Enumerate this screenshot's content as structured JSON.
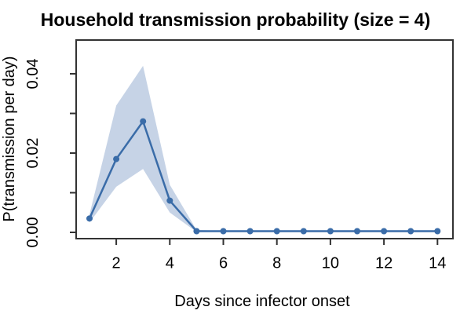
{
  "chart_data": {
    "type": "line",
    "title": "Household transmission probability (size = 4)",
    "xlabel": "Days since infector onset",
    "ylabel": "P(transmission per day)",
    "x": [
      1,
      2,
      3,
      4,
      5,
      6,
      7,
      8,
      9,
      10,
      11,
      12,
      13,
      14
    ],
    "series": [
      {
        "name": "mean",
        "values": [
          0.0035,
          0.0185,
          0.028,
          0.008,
          0.0003,
          0.0003,
          0.0003,
          0.0003,
          0.0003,
          0.0003,
          0.0003,
          0.0003,
          0.0003,
          0.0003
        ]
      },
      {
        "name": "ci_lower",
        "values": [
          0.0025,
          0.0115,
          0.016,
          0.005,
          0.0001,
          0.0002,
          0.0002,
          0.0002,
          0.0002,
          0.0002,
          0.0002,
          0.0002,
          0.0002,
          0.0002
        ]
      },
      {
        "name": "ci_upper",
        "values": [
          0.0045,
          0.032,
          0.042,
          0.012,
          0.0006,
          0.0004,
          0.0004,
          0.0004,
          0.0004,
          0.0004,
          0.0004,
          0.0004,
          0.0004,
          0.0004
        ]
      }
    ],
    "x_ticks": {
      "values": [
        2,
        4,
        6,
        8,
        10,
        12,
        14
      ],
      "labels": [
        "2",
        "4",
        "6",
        "8",
        "10",
        "12",
        "14"
      ]
    },
    "y_ticks": {
      "values": [
        0,
        0.01,
        0.02,
        0.03,
        0.04
      ],
      "labeled_values": [
        0,
        0.02,
        0.04
      ],
      "labels": [
        "0.00",
        "0.02",
        "0.04"
      ]
    },
    "xlim": [
      1,
      14
    ],
    "ylim": [
      0,
      0.044
    ],
    "grid": false,
    "legend": "none",
    "marker": "circle",
    "colors": {
      "line": "#3a6ca8",
      "band": "#c6d3e6",
      "axis": "#333333",
      "text": "#000000",
      "background": "#ffffff"
    }
  }
}
